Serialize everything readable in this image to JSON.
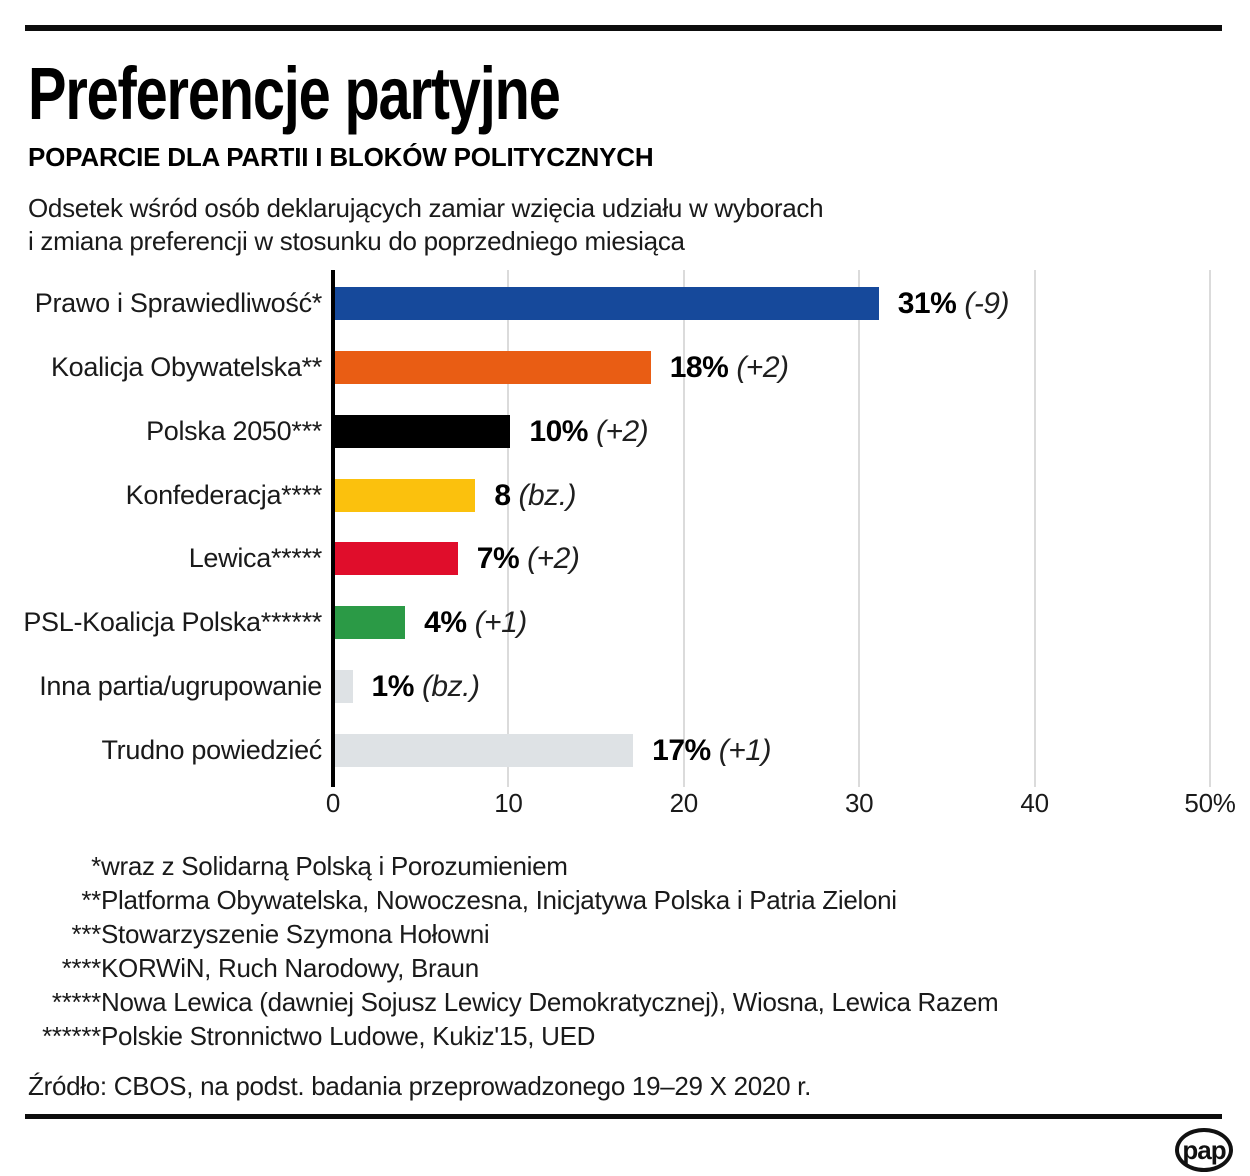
{
  "header": {
    "title": "Preferencje partyjne",
    "subtitle": "POPARCIE DLA PARTII I BLOKÓW POLITYCZNYCH",
    "description_line1": "Odsetek wśród osób deklarujących zamiar wzięcia udziału w wyborach",
    "description_line2": "i zmiana preferencji w stosunku do poprzedniego miesiąca"
  },
  "chart_data": {
    "type": "bar",
    "orientation": "horizontal",
    "title": "Poparcie dla partii i bloków politycznych",
    "xlabel": "",
    "ylabel": "",
    "xlim": [
      0,
      50
    ],
    "grid": true,
    "x_ticks": [
      0,
      10,
      20,
      30,
      40,
      50
    ],
    "x_tick_labels": [
      "0",
      "10",
      "20",
      "30",
      "40",
      "50%"
    ],
    "series": [
      {
        "label": "Prawo i Sprawiedliwość*",
        "value": 31,
        "value_label": "31%",
        "change": "(-9)",
        "color": "#16499B"
      },
      {
        "label": "Koalicja Obywatelska**",
        "value": 18,
        "value_label": "18%",
        "change": "(+2)",
        "color": "#E95D14"
      },
      {
        "label": "Polska 2050***",
        "value": 10,
        "value_label": "10%",
        "change": "(+2)",
        "color": "#000000"
      },
      {
        "label": "Konfederacja****",
        "value": 8,
        "value_label": "8",
        "change": "(bz.)",
        "color": "#FBC10D"
      },
      {
        "label": "Lewica*****",
        "value": 7,
        "value_label": "7%",
        "change": "(+2)",
        "color": "#E00D2B"
      },
      {
        "label": "PSL-Koalicja Polska******",
        "value": 4,
        "value_label": "4%",
        "change": "(+1)",
        "color": "#2B9A46"
      },
      {
        "label": "Inna partia/ugrupowanie",
        "value": 1,
        "value_label": "1%",
        "change": "(bz.)",
        "color": "#DEE2E5"
      },
      {
        "label": "Trudno powiedzieć",
        "value": 17,
        "value_label": "17%",
        "change": "(+1)",
        "color": "#DEE2E5"
      }
    ]
  },
  "footnotes": [
    {
      "stars": "*",
      "text": "wraz z Solidarną Polską i Porozumieniem"
    },
    {
      "stars": "**",
      "text": "Platforma Obywatelska, Nowoczesna, Inicjatywa Polska i Patria Zieloni"
    },
    {
      "stars": "***",
      "text": "Stowarzyszenie Szymona Hołowni"
    },
    {
      "stars": "****",
      "text": "KORWiN, Ruch Narodowy, Braun"
    },
    {
      "stars": "*****",
      "text": "Nowa Lewica (dawniej Sojusz Lewicy Demokratycznej), Wiosna, Lewica Razem"
    },
    {
      "stars": "******",
      "text": "Polskie Stronnictwo Ludowe, Kukiz'15, UED"
    }
  ],
  "source": "Źródło: CBOS, na podst. badania przeprowadzonego 19–29 X 2020 r.",
  "logo": {
    "text": "pap"
  }
}
